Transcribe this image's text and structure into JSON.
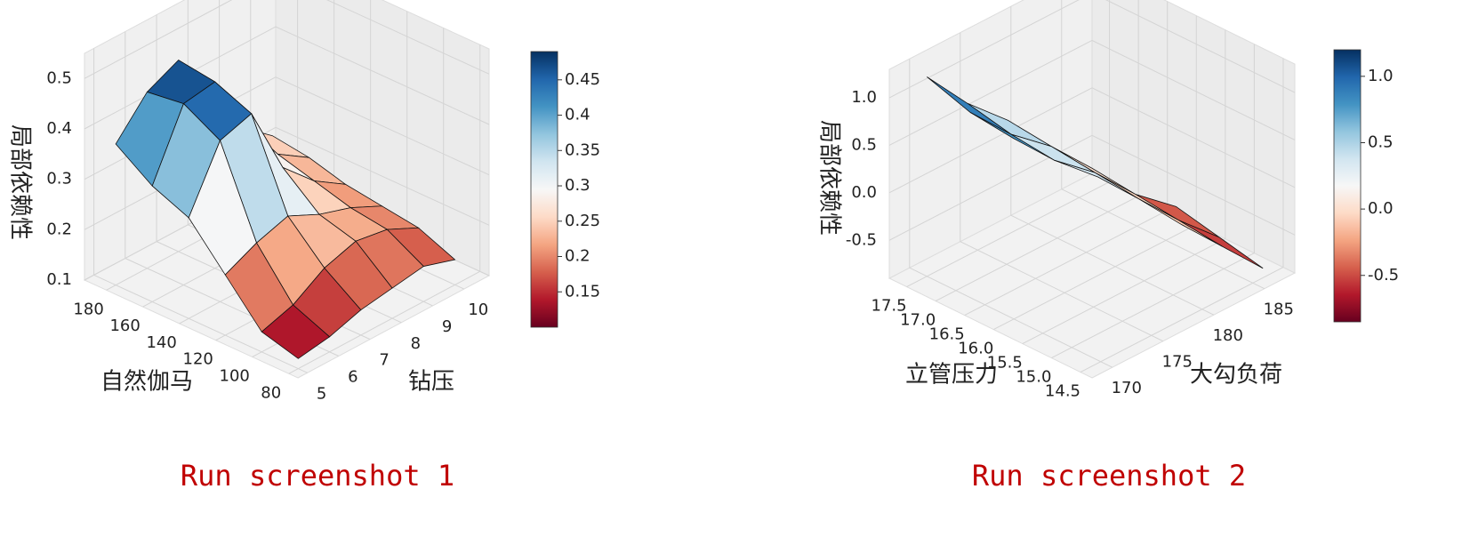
{
  "chart_data": [
    {
      "type": "surface",
      "colormap": "RdBu",
      "xlabel": "钻压",
      "ylabel": "自然伽马",
      "zlabel": "局部依赖性",
      "caption": "Run screenshot 1",
      "x": [
        5,
        6,
        7,
        8,
        9,
        10
      ],
      "y": [
        80,
        100,
        120,
        140,
        160,
        180
      ],
      "z": [
        [
          0.12,
          0.13,
          0.15,
          0.16,
          0.17,
          0.15
        ],
        [
          0.14,
          0.16,
          0.2,
          0.22,
          0.21,
          0.18
        ],
        [
          0.22,
          0.25,
          0.27,
          0.24,
          0.22,
          0.19
        ],
        [
          0.3,
          0.42,
          0.44,
          0.3,
          0.24,
          0.2
        ],
        [
          0.33,
          0.46,
          0.47,
          0.35,
          0.26,
          0.22
        ],
        [
          0.38,
          0.45,
          0.48,
          0.4,
          0.28,
          0.23
        ]
      ],
      "xlim": [
        4.7,
        10.8
      ],
      "ylim": [
        75,
        192
      ],
      "zlim": [
        0.1,
        0.55
      ],
      "xticks": [
        5,
        6,
        7,
        8,
        9,
        10
      ],
      "yticks": [
        80,
        100,
        120,
        140,
        160,
        180
      ],
      "zticks": [
        0.1,
        0.2,
        0.3,
        0.4,
        0.5
      ],
      "colorbar": {
        "clim": [
          0.1,
          0.49
        ],
        "ticks": [
          0.15,
          0.2,
          0.25,
          0.3,
          0.35,
          0.4,
          0.45
        ]
      }
    },
    {
      "type": "surface",
      "colormap": "RdBu",
      "xlabel": "大勾负荷",
      "ylabel": "立管压力",
      "zlabel": "局部依赖性",
      "caption": "Run screenshot 2",
      "x": [
        170,
        174,
        178,
        182,
        186
      ],
      "y": [
        14.5,
        15.25,
        16,
        16.75,
        17.5
      ],
      "z": [
        [
          null,
          null,
          0.1,
          -0.35,
          -0.8
        ],
        [
          null,
          0.6,
          0.15,
          -0.3,
          -0.7
        ],
        [
          1.0,
          0.55,
          0.2,
          -0.25,
          -0.6
        ],
        [
          1.05,
          0.6,
          0.25,
          -0.2,
          null
        ],
        [
          1.2,
          0.7,
          0.3,
          null,
          null
        ]
      ],
      "xlim": [
        168,
        188
      ],
      "ylim": [
        14.3,
        17.8
      ],
      "zlim": [
        -0.9,
        1.3
      ],
      "xticks": [
        170,
        175,
        180,
        185
      ],
      "yticks": [
        {
          "value": 14.5,
          "label": "14.5"
        },
        {
          "value": 15,
          "label": "15.0"
        },
        15.5,
        {
          "value": 16,
          "label": "16.0"
        },
        16.5,
        {
          "value": 17,
          "label": "17.0"
        },
        17.5
      ],
      "zticks": [
        -0.5,
        {
          "value": 0,
          "label": "0.0"
        },
        0.5,
        {
          "value": 1,
          "label": "1.0"
        }
      ],
      "colorbar": {
        "clim": [
          -0.85,
          1.2
        ],
        "ticks": [
          -0.5,
          {
            "value": 0,
            "label": "0.0"
          },
          0.5,
          {
            "value": 1,
            "label": "1.0"
          }
        ]
      }
    }
  ]
}
